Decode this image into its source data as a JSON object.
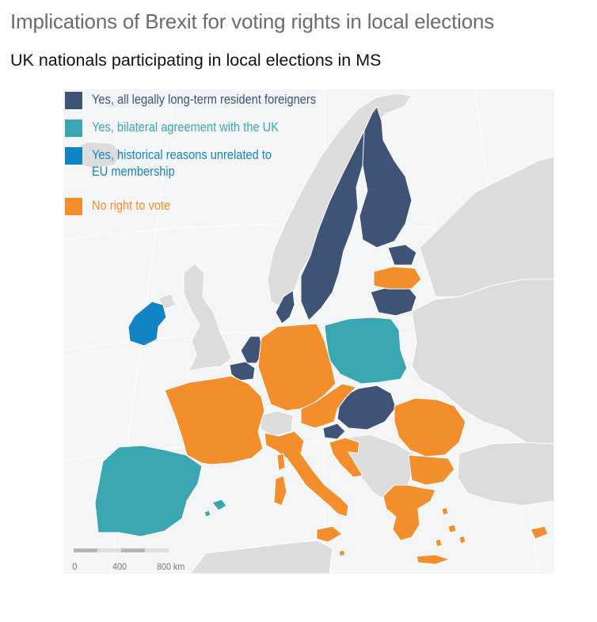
{
  "header": {
    "title": "Implications of Brexit for voting rights in local elections",
    "subtitle": "UK nationals participating in local elections in MS"
  },
  "colors": {
    "all_resident": "#3e5376",
    "bilateral": "#3aa6b2",
    "historical": "#1284c4",
    "no_right": "#f28e2c",
    "non_eu": "#dcdcdc",
    "sea": "#f4f5f7",
    "border": "#ffffff"
  },
  "legend": [
    {
      "key": "all_resident",
      "label": "Yes, all legally long-term resident foreigners",
      "color": "#3e5376"
    },
    {
      "key": "bilateral",
      "label": "Yes, bilateral agreement with the UK",
      "color": "#3aa6b2"
    },
    {
      "key": "historical",
      "label": "Yes, historical reasons unrelated to\nEU membership",
      "color": "#1284c4"
    },
    {
      "key": "no_right",
      "label": "No right to vote",
      "color": "#f28e2c"
    }
  ],
  "countries": {
    "all_resident": [
      "Sweden",
      "Finland",
      "Denmark",
      "Estonia",
      "Lithuania",
      "Netherlands",
      "Belgium",
      "Luxembourg",
      "Slovakia",
      "Hungary",
      "Slovenia"
    ],
    "bilateral": [
      "Spain",
      "Portugal",
      "Poland"
    ],
    "historical": [
      "Ireland"
    ],
    "no_right": [
      "France",
      "Germany",
      "Italy",
      "Austria",
      "Czechia",
      "Croatia",
      "Romania",
      "Bulgaria",
      "Greece",
      "Cyprus",
      "Malta",
      "Latvia"
    ],
    "non_eu": [
      "United Kingdom",
      "Norway",
      "Switzerland",
      "Iceland",
      "Balkans",
      "Belarus",
      "Ukraine",
      "Turkey",
      "North Africa"
    ]
  },
  "scale": {
    "labels": [
      "0",
      "400",
      "800 km"
    ]
  }
}
